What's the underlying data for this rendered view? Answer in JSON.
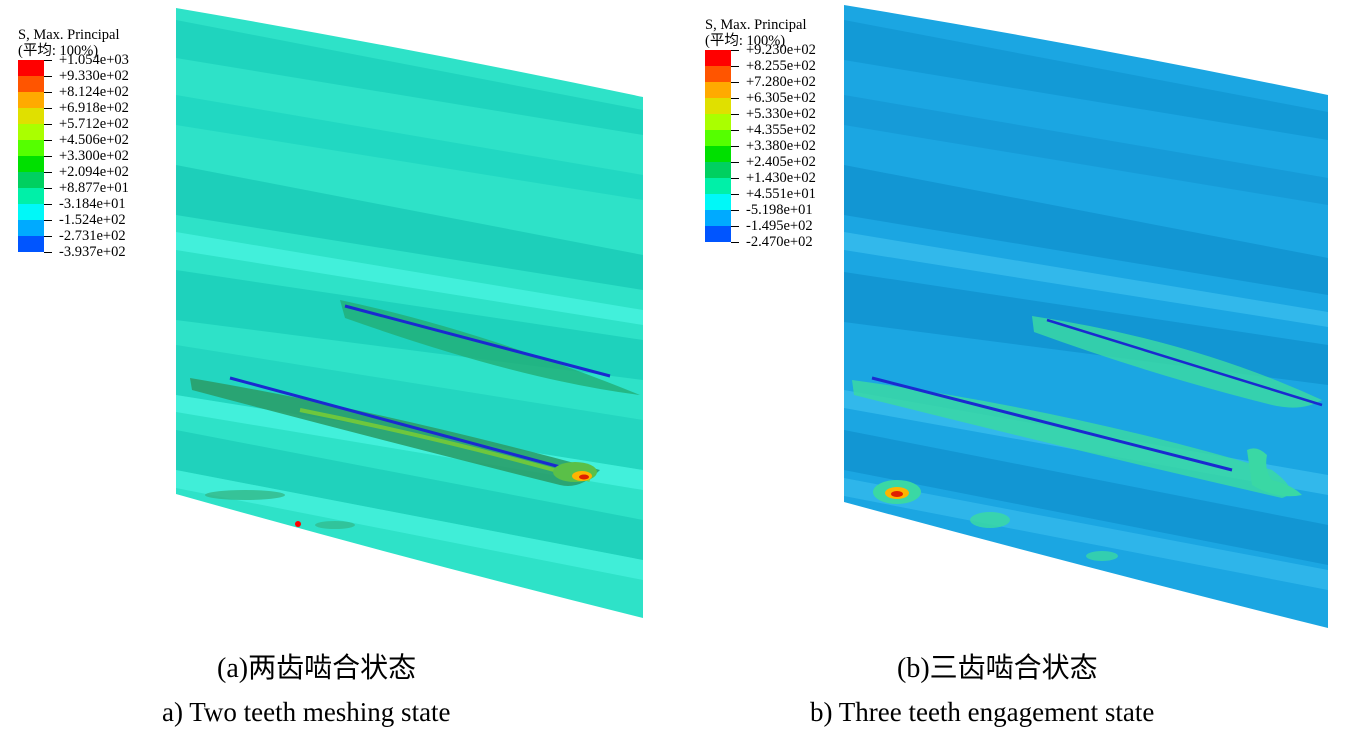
{
  "panel_a": {
    "legend": {
      "title_line1": "S, Max. Principal",
      "title_line2": "(平均: 100%)",
      "values": [
        "+1.054e+03",
        "+9.330e+02",
        "+8.124e+02",
        "+6.918e+02",
        "+5.712e+02",
        "+4.506e+02",
        "+3.300e+02",
        "+2.094e+02",
        "+8.877e+01",
        "-3.184e+01",
        "-1.524e+02",
        "-2.731e+02",
        "-3.937e+02"
      ],
      "colors": [
        "#ff0000",
        "#ff5500",
        "#ffaa00",
        "#e0e000",
        "#aaff00",
        "#55ff00",
        "#00e000",
        "#00d060",
        "#00f0a8",
        "#00f8f8",
        "#00aaff",
        "#0055ff",
        "#0000e8"
      ]
    },
    "caption_cn": "(a)两齿啮合状态",
    "caption_en": "a) Two teeth meshing state"
  },
  "panel_b": {
    "legend": {
      "title_line1": "S, Max. Principal",
      "title_line2": "(平均: 100%)",
      "values": [
        "+9.230e+02",
        "+8.255e+02",
        "+7.280e+02",
        "+6.305e+02",
        "+5.330e+02",
        "+4.355e+02",
        "+3.380e+02",
        "+2.405e+02",
        "+1.430e+02",
        "+4.551e+01",
        "-5.198e+01",
        "-1.495e+02",
        "-2.470e+02"
      ],
      "colors": [
        "#ff0000",
        "#ff5500",
        "#ffaa00",
        "#e0e000",
        "#aaff00",
        "#55ff00",
        "#00e000",
        "#00d060",
        "#00f0a8",
        "#00f8f8",
        "#00aaff",
        "#0055ff",
        "#0000e8"
      ]
    },
    "caption_cn": "(b)三齿啮合状态",
    "caption_en": "b) Three teeth engagement state"
  }
}
